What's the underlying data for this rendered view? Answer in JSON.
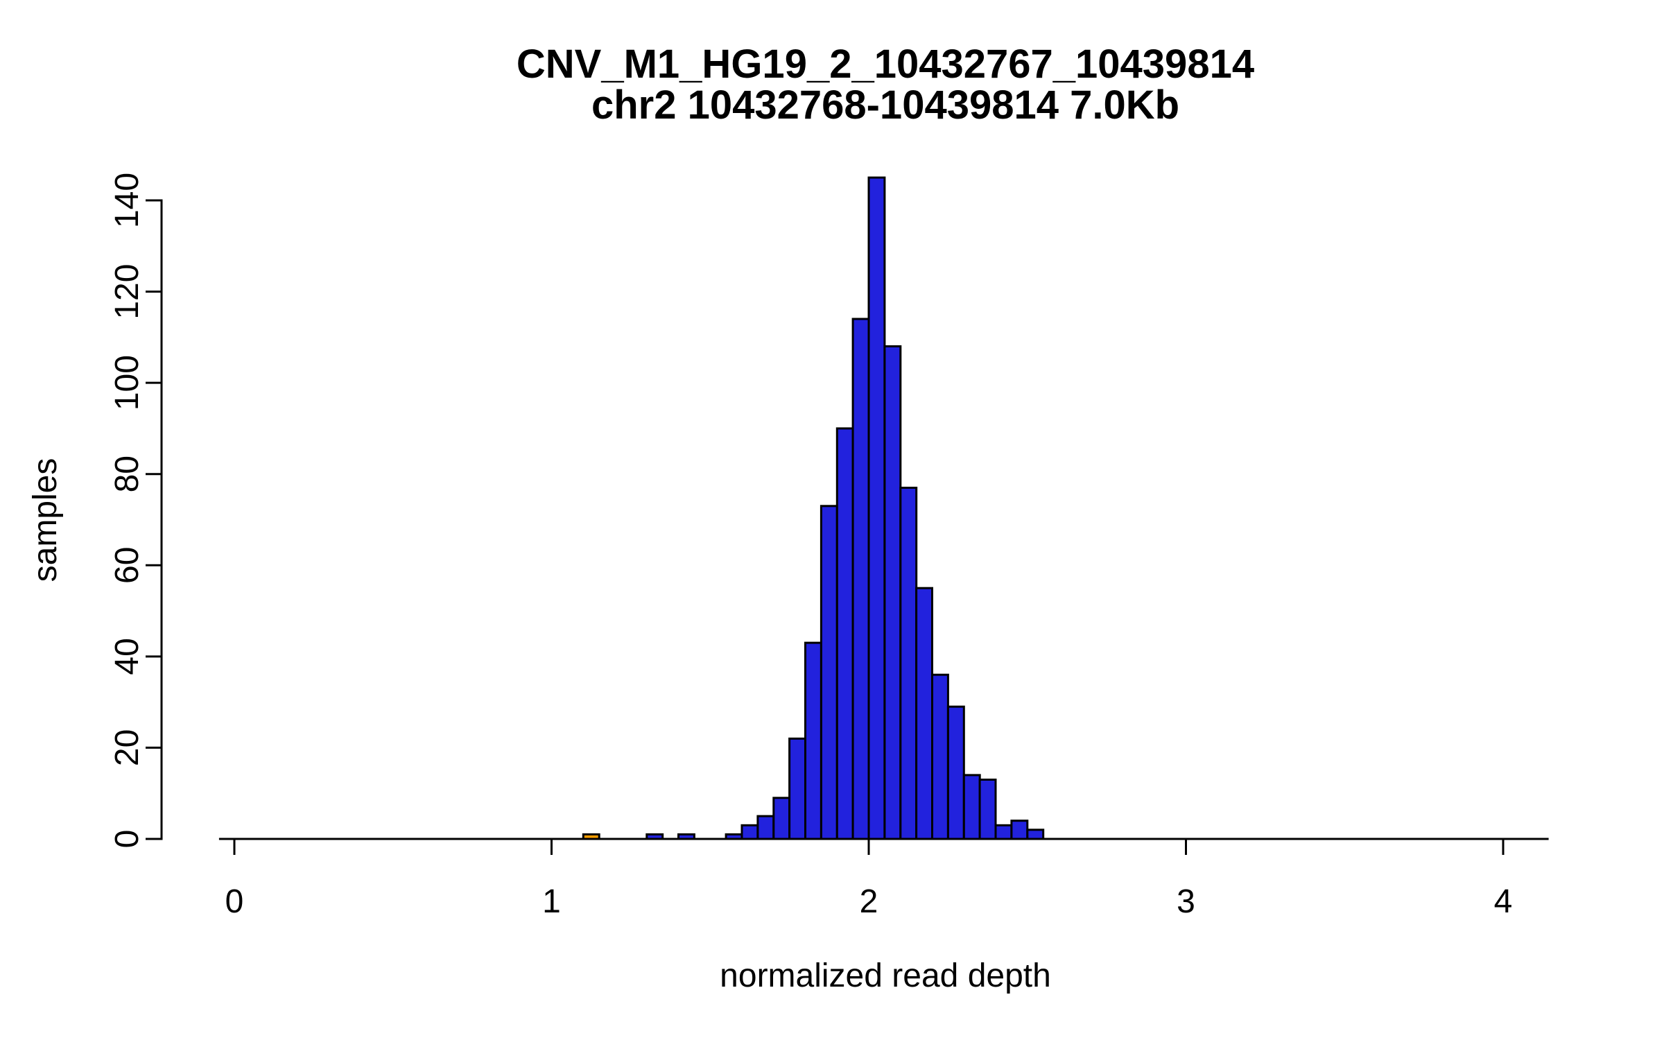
{
  "page": {
    "background": "#ffffff"
  },
  "chart_data": {
    "type": "bar",
    "subtype": "histogram",
    "title": "CNV_M1_HG19_2_10432767_10439814",
    "subtitle": "chr2 10432768-10439814 7.0Kb",
    "xlabel": "normalized read depth",
    "ylabel": "samples",
    "x_ticks": [
      0,
      1,
      2,
      3,
      4
    ],
    "y_ticks": [
      0,
      20,
      40,
      60,
      80,
      100,
      120,
      140
    ],
    "xlim": [
      -0.045,
      4.14
    ],
    "ylim": [
      0,
      145
    ],
    "bin_width": 0.05,
    "grid": false,
    "legend": "none",
    "colors": {
      "bar": "#2222dd",
      "highlight": "#ff9e00",
      "stroke": "#000000",
      "axis": "#000000",
      "text": "#000000"
    },
    "bars": [
      {
        "x": 1.1,
        "n": 1,
        "highlight": true
      },
      {
        "x": 1.3,
        "n": 1
      },
      {
        "x": 1.4,
        "n": 1
      },
      {
        "x": 1.55,
        "n": 1
      },
      {
        "x": 1.6,
        "n": 3
      },
      {
        "x": 1.65,
        "n": 5
      },
      {
        "x": 1.7,
        "n": 9
      },
      {
        "x": 1.75,
        "n": 22
      },
      {
        "x": 1.8,
        "n": 43
      },
      {
        "x": 1.85,
        "n": 73
      },
      {
        "x": 1.9,
        "n": 90
      },
      {
        "x": 1.95,
        "n": 114
      },
      {
        "x": 2.0,
        "n": 145
      },
      {
        "x": 2.05,
        "n": 108
      },
      {
        "x": 2.1,
        "n": 77
      },
      {
        "x": 2.15,
        "n": 55
      },
      {
        "x": 2.2,
        "n": 36
      },
      {
        "x": 2.25,
        "n": 29
      },
      {
        "x": 2.3,
        "n": 14
      },
      {
        "x": 2.35,
        "n": 13
      },
      {
        "x": 2.4,
        "n": 3
      },
      {
        "x": 2.45,
        "n": 4
      },
      {
        "x": 2.5,
        "n": 2
      }
    ]
  }
}
